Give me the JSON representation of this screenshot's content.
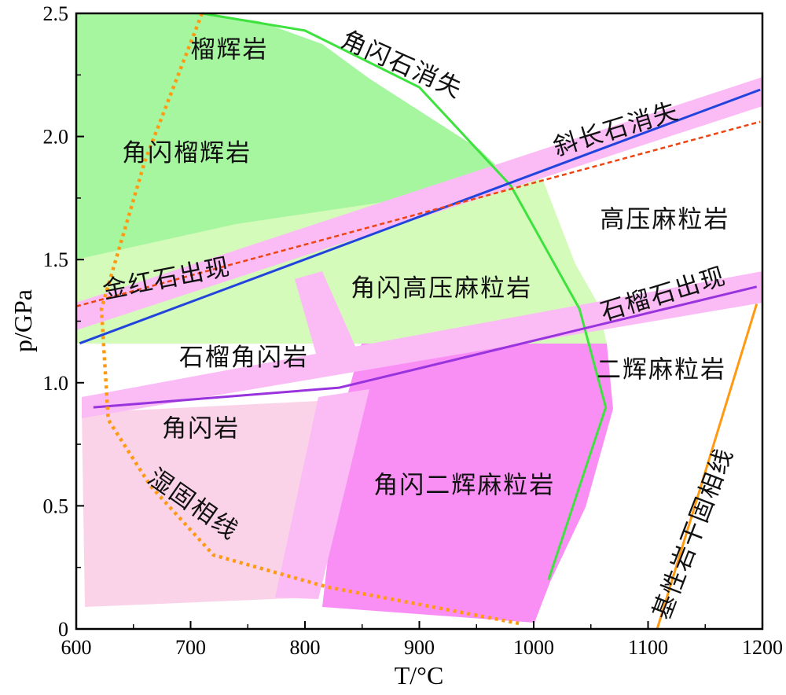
{
  "chart_data": {
    "type": "diagram",
    "xlabel": "T/°C",
    "ylabel": "p/GPa",
    "xlim": [
      600,
      1200
    ],
    "ylim": [
      0,
      2.5
    ],
    "x_ticks": [
      "600",
      "700",
      "800",
      "900",
      "1000",
      "1100",
      "1200"
    ],
    "y_ticks": [
      "0",
      "0.5",
      "1.0",
      "1.5",
      "2.0",
      "2.5"
    ],
    "colors": {
      "amphibolite_eclogite": "#a6f6a0",
      "amphibole_granulite": "#d4fbb9",
      "garnet_amphibolite": "#d4fbb9",
      "amphibolite": "#fbd3e9",
      "amphibole_pyroxene_granulite": "#f98ff5",
      "transition_band": "#fbbcf5",
      "amphibole_out_line": "#3ee23e",
      "plagioclase_out_line": "#2244dd",
      "rutile_in_line": "#ee4411",
      "garnet_in_line": "#9933dd",
      "solidus_line": "#ff9911"
    },
    "lines": [
      {
        "name": "角闪石消失",
        "points": [
          [
            710,
            2.5
          ],
          [
            800,
            2.43
          ],
          [
            900,
            2.2
          ],
          [
            980,
            1.8
          ],
          [
            1040,
            1.3
          ],
          [
            1063,
            0.9
          ],
          [
            1013,
            0.2
          ]
        ]
      },
      {
        "name": "斜长石消失",
        "points": [
          [
            603,
            1.16
          ],
          [
            1198,
            2.19
          ]
        ]
      },
      {
        "name": "金红石出现",
        "points": [
          [
            600,
            1.31
          ],
          [
            1198,
            2.06
          ]
        ]
      },
      {
        "name": "石榴石出现",
        "points": [
          [
            615,
            0.9
          ],
          [
            830,
            0.98
          ],
          [
            1195,
            1.39
          ]
        ]
      },
      {
        "name": "湿固相线",
        "points": [
          [
            710,
            2.5
          ],
          [
            660,
            1.9
          ],
          [
            622,
            1.3
          ],
          [
            628,
            0.85
          ],
          [
            665,
            0.58
          ],
          [
            720,
            0.3
          ],
          [
            820,
            0.17
          ],
          [
            900,
            0.1
          ],
          [
            990,
            0.02
          ]
        ]
      },
      {
        "name": "基性岩干固相线",
        "points": [
          [
            1108,
            0
          ],
          [
            1195,
            1.32
          ]
        ]
      }
    ],
    "regions": [
      {
        "name": "榴辉岩",
        "label": [
          700,
          2.32
        ]
      },
      {
        "name": "角闪榴辉岩",
        "label": [
          640,
          1.9
        ]
      },
      {
        "name": "高压麻粒岩",
        "label": [
          1058,
          1.63
        ]
      },
      {
        "name": "角闪高压麻粒岩",
        "label": [
          840,
          1.35
        ]
      },
      {
        "name": "石榴角闪岩",
        "label": [
          690,
          1.07
        ]
      },
      {
        "name": "二辉麻粒岩",
        "label": [
          1055,
          1.02
        ]
      },
      {
        "name": "角闪岩",
        "label": [
          675,
          0.78
        ]
      },
      {
        "name": "角闪二辉麻粒岩",
        "label": [
          860,
          0.55
        ]
      }
    ]
  }
}
